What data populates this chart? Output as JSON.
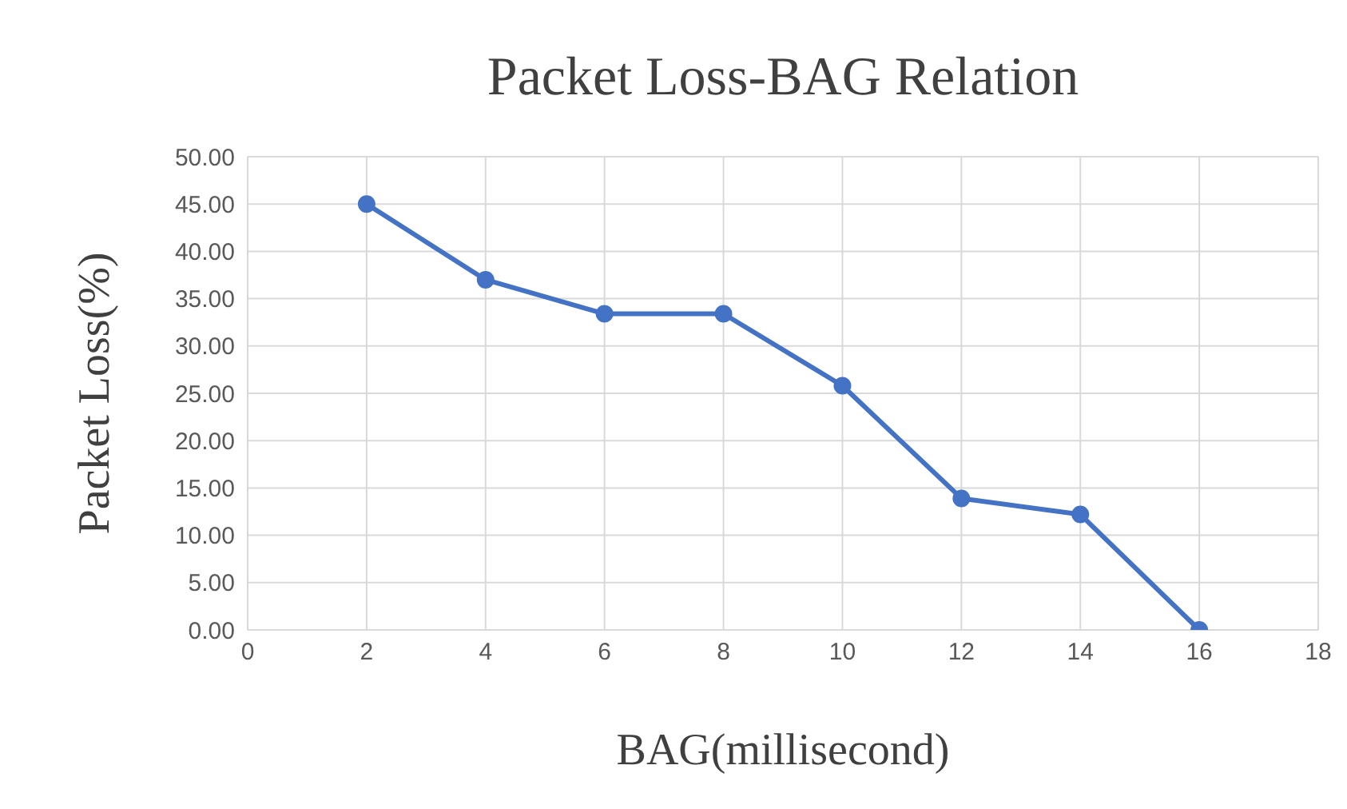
{
  "chart_data": {
    "type": "line",
    "title": "Packet Loss-BAG Relation",
    "xlabel": "BAG(millisecond)",
    "ylabel": "Packet Loss(%)",
    "x": [
      2,
      4,
      6,
      8,
      10,
      12,
      14,
      16
    ],
    "series": [
      {
        "color": "#4472c4",
        "values": [
          45,
          37,
          33.4,
          33.4,
          25.8,
          13.9,
          12.2,
          0
        ]
      }
    ],
    "xlim": [
      0,
      18
    ],
    "xticks": [
      0,
      2,
      4,
      6,
      8,
      10,
      12,
      14,
      16,
      18
    ],
    "ylim": [
      0,
      50
    ],
    "yticks": [
      {
        "value": 0,
        "label": "0.00"
      },
      {
        "value": 5,
        "label": "5.00"
      },
      {
        "value": 10,
        "label": "10.00"
      },
      {
        "value": 15,
        "label": "15.00"
      },
      {
        "value": 20,
        "label": "20.00"
      },
      {
        "value": 25,
        "label": "25.00"
      },
      {
        "value": 30,
        "label": "30.00"
      },
      {
        "value": 35,
        "label": "35.00"
      },
      {
        "value": 40,
        "label": "40.00"
      },
      {
        "value": 45,
        "label": "45.00"
      },
      {
        "value": 50,
        "label": "50.00"
      }
    ],
    "grid": true,
    "marker": "circle",
    "line_style": "solid"
  }
}
